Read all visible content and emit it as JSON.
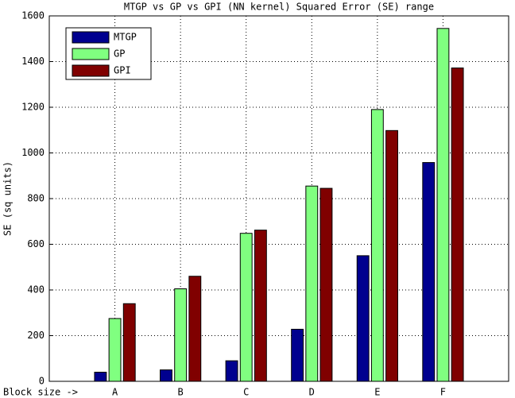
{
  "chart_data": {
    "type": "bar",
    "title": "MTGP vs GP vs GPI (NN kernel) Squared Error (SE) range",
    "xlabel": "Block size ->",
    "ylabel": "SE (sq units)",
    "categories": [
      "A",
      "B",
      "C",
      "D",
      "E",
      "F"
    ],
    "series": [
      {
        "name": "MTGP",
        "color": "#00008f",
        "values": [
          40,
          50,
          90,
          228,
          550,
          958
        ]
      },
      {
        "name": "GP",
        "color": "#80ff80",
        "values": [
          275,
          405,
          648,
          855,
          1190,
          1545
        ]
      },
      {
        "name": "GPI",
        "color": "#800000",
        "values": [
          340,
          460,
          662,
          845,
          1098,
          1372
        ]
      }
    ],
    "ylim": [
      0,
      1600
    ],
    "yticks": [
      0,
      200,
      400,
      600,
      800,
      1000,
      1200,
      1400,
      1600
    ],
    "grid": true,
    "legend": "upper-left"
  }
}
